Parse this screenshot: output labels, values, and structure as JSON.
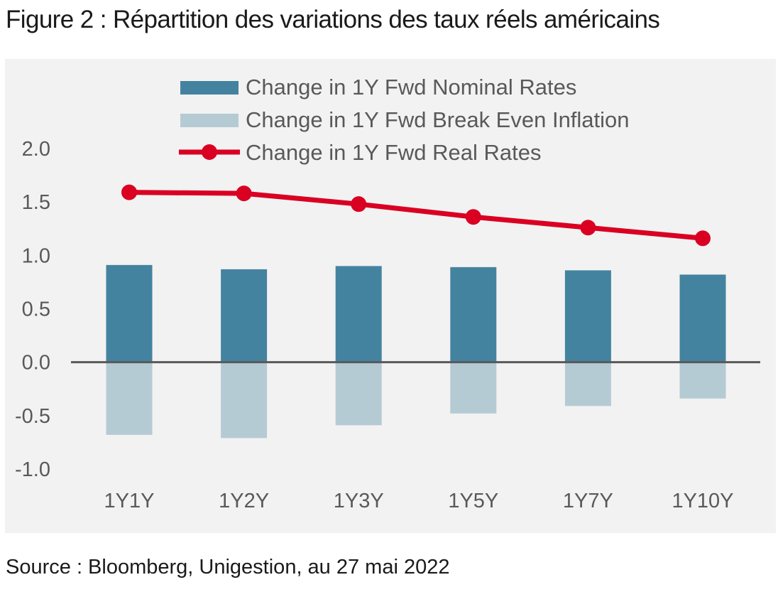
{
  "title": "Figure 2 : Répartition des variations des taux réels américains",
  "source": "Source : Bloomberg, Unigestion, au 27 mai 2022",
  "chart_data": {
    "type": "bar",
    "categories": [
      "1Y1Y",
      "1Y2Y",
      "1Y3Y",
      "1Y5Y",
      "1Y7Y",
      "1Y10Y"
    ],
    "series": [
      {
        "name": "Change in 1Y Fwd Nominal Rates",
        "type": "bar",
        "color": "#44839f",
        "values": [
          0.91,
          0.87,
          0.9,
          0.89,
          0.86,
          0.82
        ]
      },
      {
        "name": "Change in 1Y Fwd Break Even Inflation",
        "type": "bar",
        "color": "#b5cbd4",
        "values": [
          -0.68,
          -0.71,
          -0.59,
          -0.48,
          -0.41,
          -0.34
        ]
      },
      {
        "name": "Change in 1Y Fwd Real Rates",
        "type": "line",
        "color": "#d90022",
        "values": [
          1.59,
          1.58,
          1.48,
          1.36,
          1.26,
          1.16
        ]
      }
    ],
    "y_ticks": [
      "2.0",
      "1.5",
      "1.0",
      "0.5",
      "0.0",
      "-0.5",
      "-1.0"
    ],
    "ylim": [
      -1.0,
      2.0
    ],
    "grid": false,
    "legend_position": "top-center"
  }
}
